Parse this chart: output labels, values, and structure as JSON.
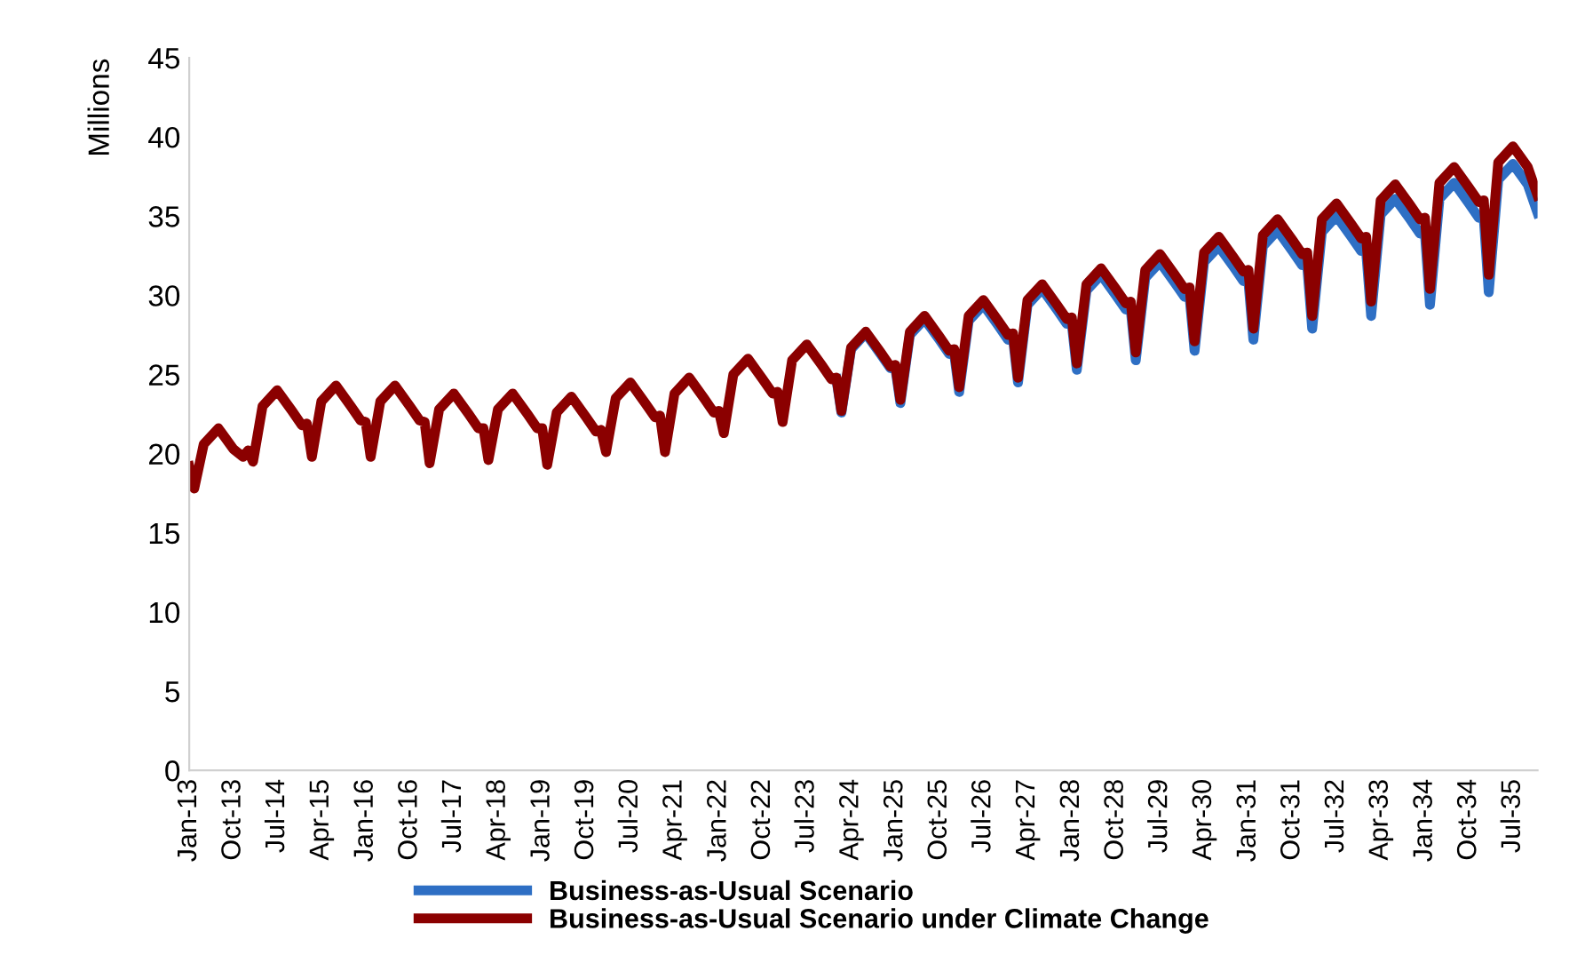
{
  "chart_data": {
    "type": "line",
    "ylabel": "Millions",
    "x": [
      "2013-01",
      "2013-02",
      "2013-04",
      "2013-07",
      "2013-10",
      "2013-12",
      "2014-01",
      "2014-02",
      "2014-04",
      "2014-07",
      "2014-10",
      "2014-12",
      "2015-01",
      "2015-02",
      "2015-04",
      "2015-07",
      "2015-10",
      "2015-12",
      "2016-01",
      "2016-02",
      "2016-04",
      "2016-07",
      "2016-10",
      "2016-12",
      "2017-01",
      "2017-02",
      "2017-04",
      "2017-07",
      "2017-10",
      "2017-12",
      "2018-01",
      "2018-02",
      "2018-04",
      "2018-07",
      "2018-10",
      "2018-12",
      "2019-01",
      "2019-02",
      "2019-04",
      "2019-07",
      "2019-10",
      "2019-12",
      "2020-01",
      "2020-02",
      "2020-04",
      "2020-07",
      "2020-10",
      "2020-12",
      "2021-01",
      "2021-02",
      "2021-04",
      "2021-07",
      "2021-10",
      "2021-12",
      "2022-01",
      "2022-02",
      "2022-04",
      "2022-07",
      "2022-10",
      "2022-12",
      "2023-01",
      "2023-02",
      "2023-04",
      "2023-07",
      "2023-10",
      "2023-12",
      "2024-01",
      "2024-02",
      "2024-04",
      "2024-07",
      "2024-10",
      "2024-12",
      "2025-01",
      "2025-02",
      "2025-04",
      "2025-07",
      "2025-10",
      "2025-12",
      "2026-01",
      "2026-02",
      "2026-04",
      "2026-07",
      "2026-10",
      "2026-12",
      "2027-01",
      "2027-02",
      "2027-04",
      "2027-07",
      "2027-10",
      "2027-12",
      "2028-01",
      "2028-02",
      "2028-04",
      "2028-07",
      "2028-10",
      "2028-12",
      "2029-01",
      "2029-02",
      "2029-04",
      "2029-07",
      "2029-10",
      "2029-12",
      "2030-01",
      "2030-02",
      "2030-04",
      "2030-07",
      "2030-10",
      "2030-12",
      "2031-01",
      "2031-02",
      "2031-04",
      "2031-07",
      "2031-10",
      "2031-12",
      "2032-01",
      "2032-02",
      "2032-04",
      "2032-07",
      "2032-10",
      "2032-12",
      "2033-01",
      "2033-02",
      "2033-04",
      "2033-07",
      "2033-10",
      "2033-12",
      "2034-01",
      "2034-02",
      "2034-04",
      "2034-07",
      "2034-10",
      "2034-12",
      "2035-01",
      "2035-02",
      "2035-04",
      "2035-07",
      "2035-10",
      "2035-12"
    ],
    "series": [
      {
        "name": "Business-as-Usual Scenario",
        "color": "#2e6fc4",
        "values": [
          null,
          null,
          null,
          null,
          null,
          null,
          null,
          null,
          null,
          null,
          null,
          null,
          null,
          null,
          null,
          null,
          null,
          null,
          null,
          null,
          null,
          null,
          null,
          null,
          null,
          null,
          null,
          null,
          null,
          null,
          null,
          null,
          null,
          null,
          null,
          null,
          null,
          null,
          null,
          null,
          null,
          null,
          null,
          null,
          null,
          null,
          null,
          null,
          null,
          null,
          null,
          null,
          null,
          null,
          null,
          null,
          null,
          null,
          null,
          null,
          null,
          null,
          null,
          null,
          null,
          null,
          24.7,
          22.6,
          26.6,
          27.6,
          26.3,
          25.4,
          25.4,
          23.2,
          27.5,
          28.5,
          27.2,
          26.3,
          26.3,
          23.9,
          28.4,
          29.4,
          28.1,
          27.2,
          27.3,
          24.5,
          29.4,
          30.4,
          29.1,
          28.2,
          28.2,
          25.3,
          30.3,
          31.3,
          30.0,
          29.1,
          29.1,
          25.9,
          31.1,
          32.1,
          30.8,
          29.9,
          29.9,
          26.5,
          32.1,
          33.1,
          31.8,
          30.9,
          30.9,
          27.2,
          33.1,
          34.1,
          32.8,
          31.9,
          31.9,
          27.9,
          34.0,
          35.0,
          33.7,
          32.8,
          32.8,
          28.7,
          35.1,
          36.1,
          34.8,
          33.9,
          33.9,
          29.4,
          36.1,
          37.1,
          35.8,
          34.9,
          34.9,
          30.2,
          37.3,
          38.3,
          37.0,
          35.2
        ]
      },
      {
        "name": "Business-as-Usual Scenario under Climate Change",
        "color": "#8b0000",
        "values": [
          19.2,
          17.8,
          20.6,
          21.6,
          20.3,
          19.8,
          20.2,
          19.5,
          23.0,
          24.0,
          22.7,
          21.8,
          21.9,
          19.8,
          23.3,
          24.3,
          23.0,
          22.1,
          22.0,
          19.8,
          23.3,
          24.3,
          23.0,
          22.1,
          22.0,
          19.4,
          22.8,
          23.8,
          22.5,
          21.6,
          21.6,
          19.6,
          22.8,
          23.8,
          22.5,
          21.6,
          21.6,
          19.3,
          22.6,
          23.6,
          22.3,
          21.4,
          21.5,
          20.1,
          23.5,
          24.5,
          23.2,
          22.3,
          22.4,
          20.1,
          23.8,
          24.8,
          23.5,
          22.6,
          22.7,
          21.3,
          25.0,
          26.0,
          24.7,
          23.8,
          23.9,
          22.0,
          25.9,
          26.9,
          25.6,
          24.7,
          24.8,
          22.7,
          26.7,
          27.7,
          26.4,
          25.5,
          25.6,
          23.4,
          27.7,
          28.7,
          27.4,
          26.5,
          26.6,
          24.2,
          28.7,
          29.7,
          28.4,
          27.5,
          27.6,
          24.8,
          29.7,
          30.7,
          29.4,
          28.5,
          28.6,
          25.7,
          30.7,
          31.7,
          30.4,
          29.5,
          29.6,
          26.4,
          31.6,
          32.6,
          31.3,
          30.4,
          30.5,
          27.1,
          32.7,
          33.7,
          32.4,
          31.5,
          31.6,
          27.9,
          33.8,
          34.8,
          33.5,
          32.6,
          32.7,
          28.7,
          34.8,
          35.8,
          34.5,
          33.6,
          33.7,
          29.6,
          36.0,
          37.0,
          35.7,
          34.8,
          34.9,
          30.4,
          37.1,
          38.1,
          36.8,
          35.9,
          36.0,
          31.3,
          38.4,
          39.4,
          38.1,
          36.3
        ]
      }
    ],
    "xlim": [
      "2013-01",
      "2035-12"
    ],
    "xticks": [
      {
        "value": "2013-01",
        "label": "Jan-13"
      },
      {
        "value": "2013-10",
        "label": "Oct-13"
      },
      {
        "value": "2014-07",
        "label": "Jul-14"
      },
      {
        "value": "2015-04",
        "label": "Apr-15"
      },
      {
        "value": "2016-01",
        "label": "Jan-16"
      },
      {
        "value": "2016-10",
        "label": "Oct-16"
      },
      {
        "value": "2017-07",
        "label": "Jul-17"
      },
      {
        "value": "2018-04",
        "label": "Apr-18"
      },
      {
        "value": "2019-01",
        "label": "Jan-19"
      },
      {
        "value": "2019-10",
        "label": "Oct-19"
      },
      {
        "value": "2020-07",
        "label": "Jul-20"
      },
      {
        "value": "2021-04",
        "label": "Apr-21"
      },
      {
        "value": "2022-01",
        "label": "Jan-22"
      },
      {
        "value": "2022-10",
        "label": "Oct-22"
      },
      {
        "value": "2023-07",
        "label": "Jul-23"
      },
      {
        "value": "2024-04",
        "label": "Apr-24"
      },
      {
        "value": "2025-01",
        "label": "Jan-25"
      },
      {
        "value": "2025-10",
        "label": "Oct-25"
      },
      {
        "value": "2026-07",
        "label": "Jul-26"
      },
      {
        "value": "2027-04",
        "label": "Apr-27"
      },
      {
        "value": "2028-01",
        "label": "Jan-28"
      },
      {
        "value": "2028-10",
        "label": "Oct-28"
      },
      {
        "value": "2029-07",
        "label": "Jul-29"
      },
      {
        "value": "2030-04",
        "label": "Apr-30"
      },
      {
        "value": "2031-01",
        "label": "Jan-31"
      },
      {
        "value": "2031-10",
        "label": "Oct-31"
      },
      {
        "value": "2032-07",
        "label": "Jul-32"
      },
      {
        "value": "2033-04",
        "label": "Apr-33"
      },
      {
        "value": "2034-01",
        "label": "Jan-34"
      },
      {
        "value": "2034-10",
        "label": "Oct-34"
      },
      {
        "value": "2035-07",
        "label": "Jul-35"
      }
    ],
    "ylim": [
      0,
      45
    ],
    "yticks": [
      0,
      5,
      10,
      15,
      20,
      25,
      30,
      35,
      40,
      45
    ],
    "grid": false,
    "legend": "bottom",
    "marker": "none",
    "line_style": "solid"
  }
}
